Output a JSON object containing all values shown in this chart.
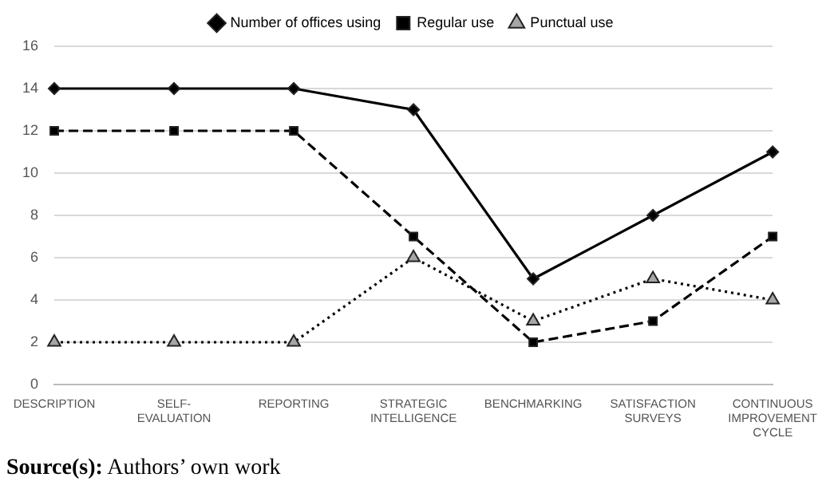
{
  "chart_data": {
    "type": "line",
    "categories": [
      "DESCRIPTION",
      "SELF-EVALUATION",
      "REPORTING",
      "STRATEGIC INTELLIGENCE",
      "BENCHMARKING",
      "SATISFACTION SURVEYS",
      "CONTINUOUS IMPROVEMENT CYCLE"
    ],
    "series": [
      {
        "name": "Number of offices using",
        "color": "#000000",
        "marker": "diamond",
        "line_style": "solid",
        "values": [
          14,
          14,
          14,
          13,
          5,
          8,
          11
        ]
      },
      {
        "name": "Regular use",
        "color": "#000000",
        "marker": "square",
        "line_style": "dashed",
        "values": [
          12,
          12,
          12,
          7,
          2,
          3,
          7
        ]
      },
      {
        "name": "Punctual use",
        "color": "#a6a6a6",
        "marker": "triangle",
        "line_style": "dotted",
        "values": [
          2,
          2,
          2,
          6,
          3,
          5,
          4
        ]
      }
    ],
    "ylim": [
      0,
      16
    ],
    "yticks": [
      0,
      2,
      4,
      6,
      8,
      10,
      12,
      14,
      16
    ],
    "grid": "y",
    "legend": "top",
    "annotations": [
      "Source(s): Authors’ own work"
    ]
  }
}
